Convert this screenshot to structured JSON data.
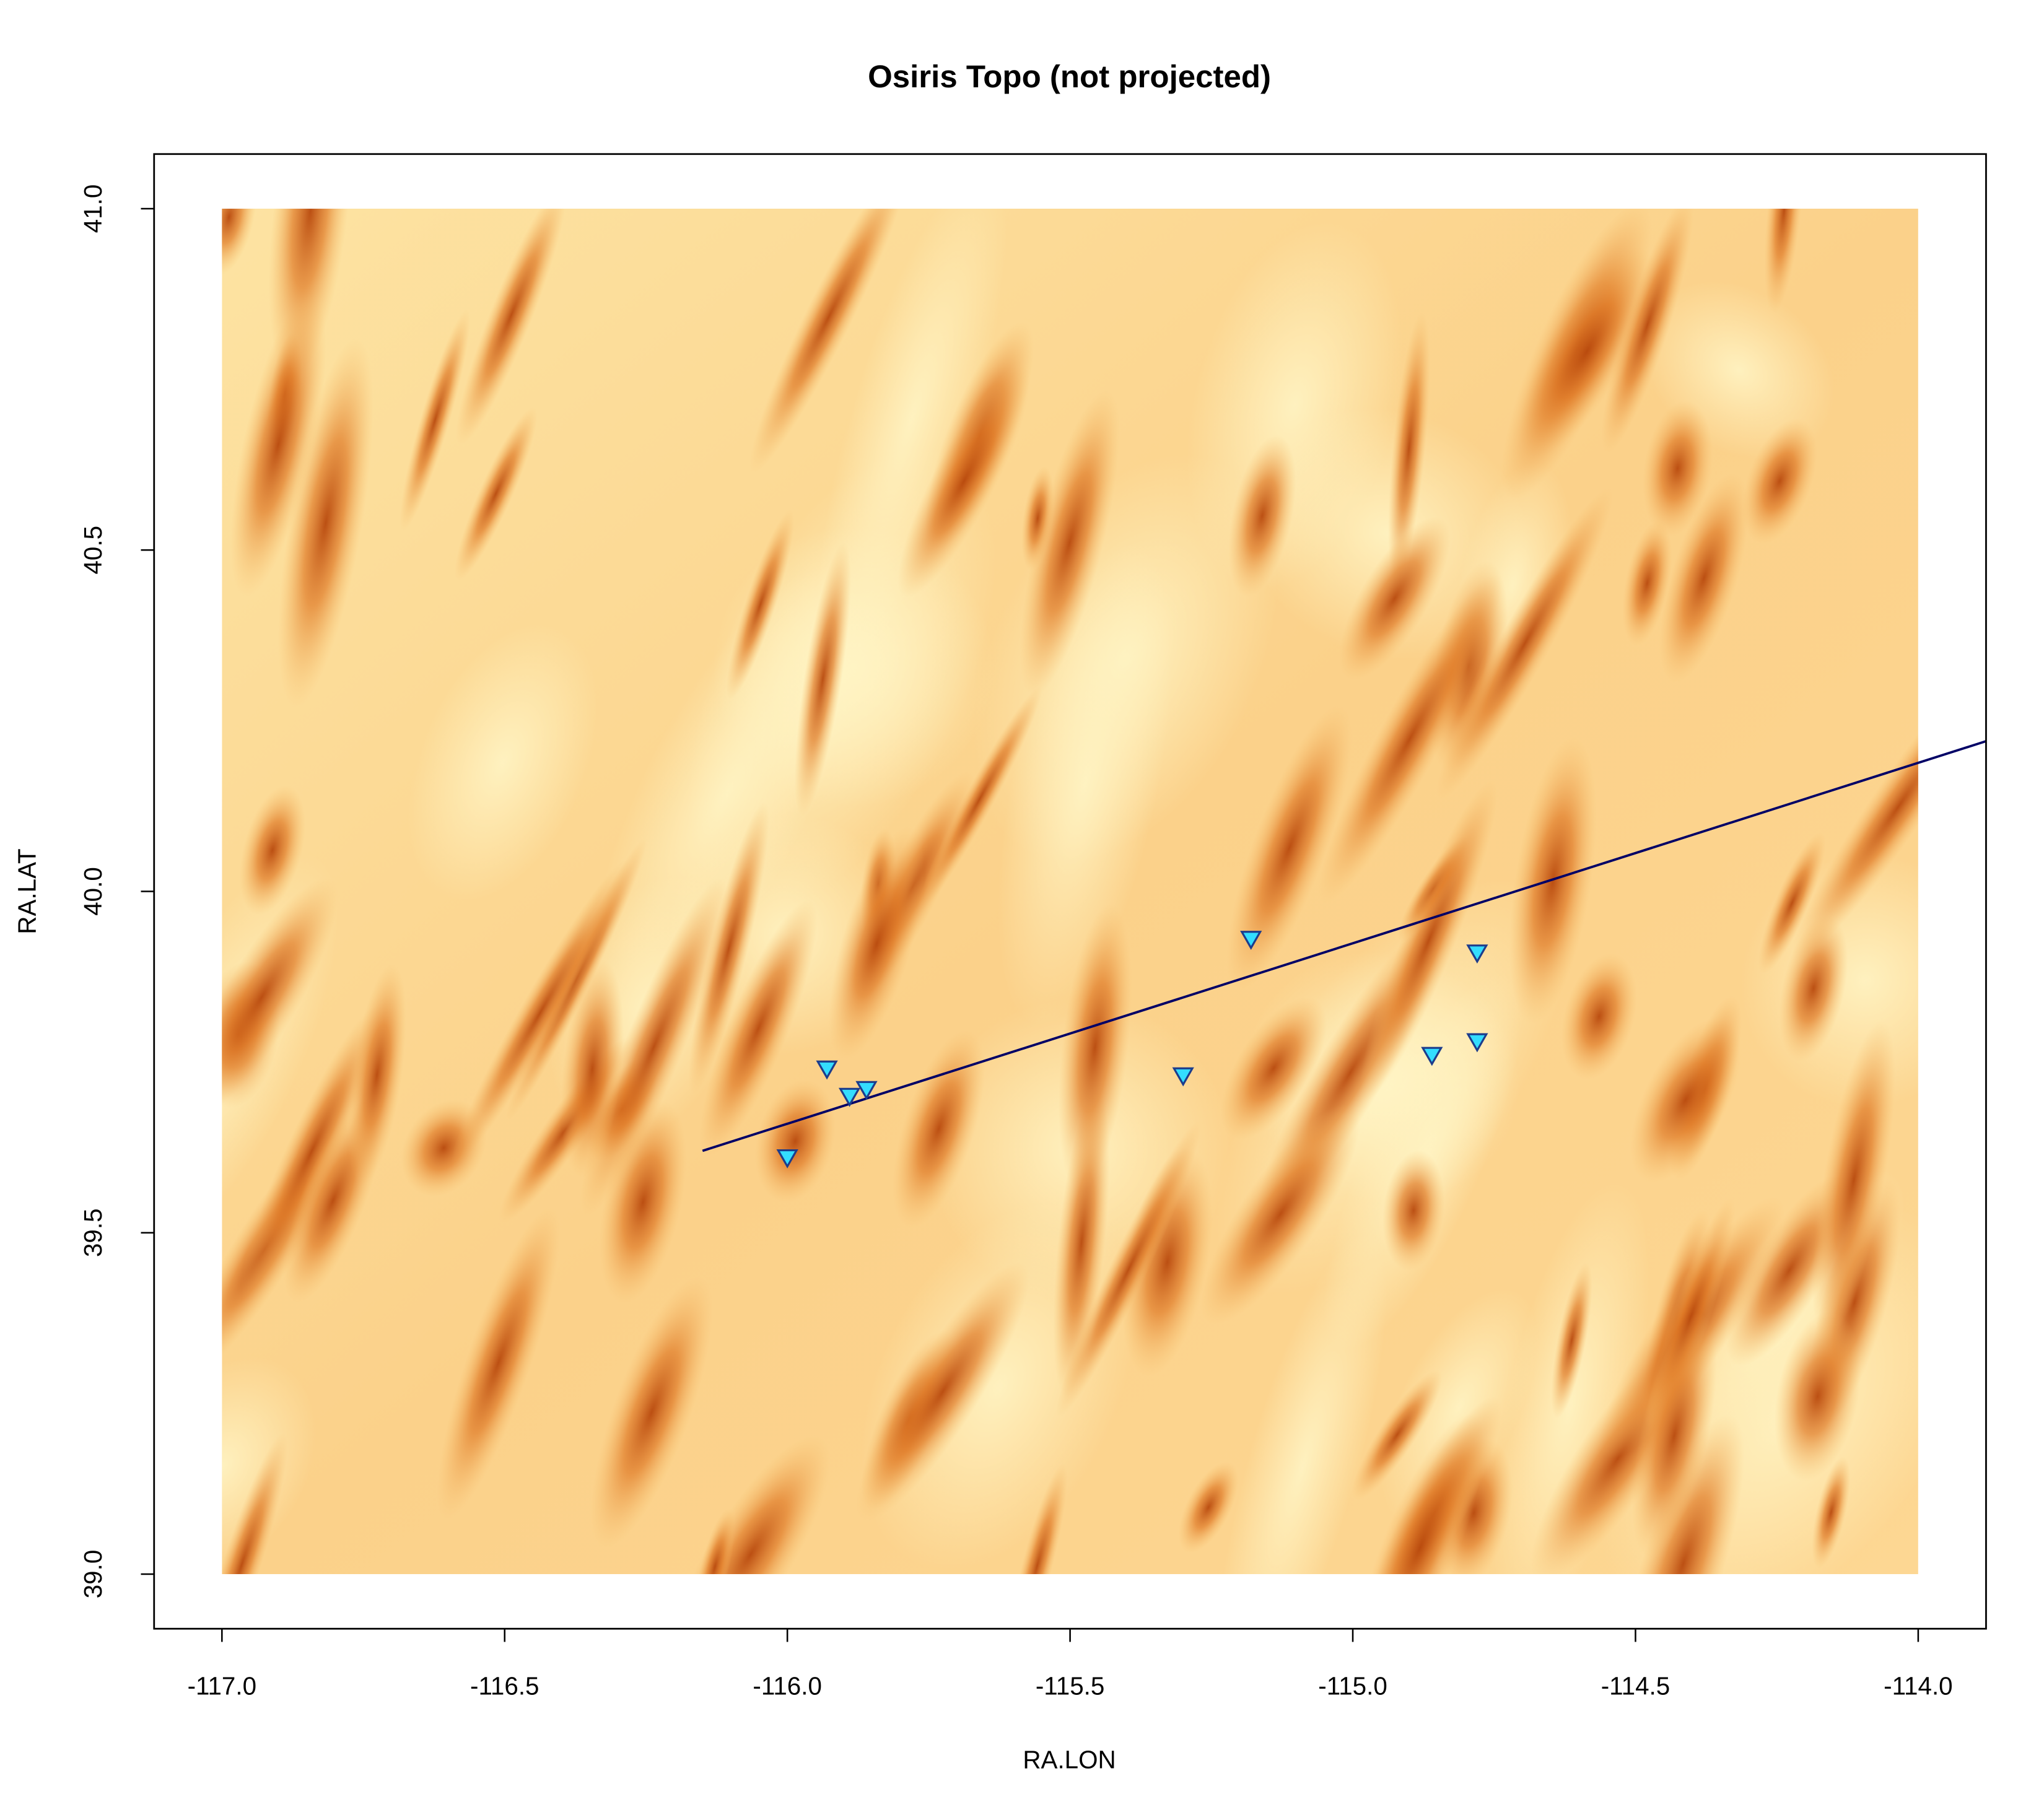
{
  "chart_data": {
    "type": "scatter",
    "title": "Osiris Topo (not projected)",
    "x_label": "RA.LON",
    "y_label": "RA.LAT",
    "xlim": [
      -117.12,
      -113.88
    ],
    "ylim": [
      38.92,
      41.08
    ],
    "xticks": [
      {
        "value": -117,
        "label": "-117.0"
      },
      -116.5,
      {
        "value": -116,
        "label": "-116.0"
      },
      -115.5,
      {
        "value": -115,
        "label": "-115.0"
      },
      -114.5,
      {
        "value": -114,
        "label": "-114.0"
      }
    ],
    "yticks": [
      {
        "value": 39,
        "label": "39.0"
      },
      39.5,
      {
        "value": 40,
        "label": "40.0"
      },
      40.5,
      {
        "value": 41,
        "label": "41.0"
      }
    ],
    "raster_extent": {
      "x": [
        -117,
        -114
      ],
      "y": [
        39,
        41
      ]
    },
    "series": [
      {
        "type": "line",
        "color": "#000066",
        "x": [
          -116.15,
          -113.88
        ],
        "y": [
          39.62,
          40.22
        ]
      },
      {
        "type": "scatter",
        "color": "#33ddff",
        "edge_color": "#1c3c8c",
        "x": [
          -115.93,
          -115.89,
          -115.86,
          -116.0,
          -115.18,
          -115.3,
          -114.78,
          -114.86,
          -114.78
        ],
        "y": [
          39.74,
          39.7,
          39.71,
          39.61,
          39.93,
          39.73,
          39.91,
          39.76,
          39.78
        ]
      }
    ]
  }
}
